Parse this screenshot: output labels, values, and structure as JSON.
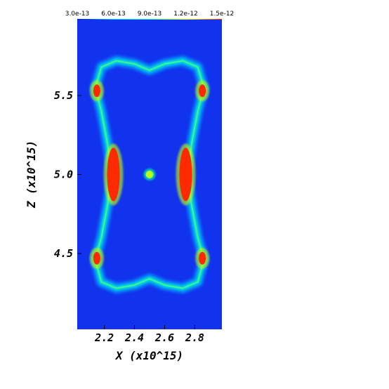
{
  "chart_data": {
    "type": "heatmap",
    "title": "",
    "xlabel": "X (x10^15)",
    "ylabel": "Z (x10^15)",
    "xlim": [
      2.02,
      2.98
    ],
    "ylim": [
      4.02,
      5.98
    ],
    "x_ticks": [
      {
        "value": 2.2,
        "label": "2.2"
      },
      {
        "value": 2.4,
        "label": "2.4"
      },
      {
        "value": 2.6,
        "label": "2.6"
      },
      {
        "value": 2.8,
        "label": "2.8"
      }
    ],
    "y_ticks": [
      {
        "value": 4.5,
        "label": "4.5"
      },
      {
        "value": 5.0,
        "label": "5.0"
      },
      {
        "value": 5.5,
        "label": "5.5"
      }
    ],
    "colorbar": {
      "range": [
        3e-13,
        1.5e-12
      ],
      "ticks": [
        {
          "value": 3e-13,
          "label": "3.0e-13"
        },
        {
          "value": 6e-13,
          "label": "6.0e-13"
        },
        {
          "value": 9e-13,
          "label": "9.0e-13"
        },
        {
          "value": 1.2e-12,
          "label": "1.2e-12"
        },
        {
          "value": 1.5e-12,
          "label": "1.5e-12"
        }
      ],
      "colors": [
        "#0000ff",
        "#00d0ff",
        "#00ffa0",
        "#c8ff00",
        "#ff2a00"
      ]
    },
    "background_color": "#1133ee",
    "field_description_points": {
      "central_blob": {
        "x": 2.5,
        "z": 5.0,
        "radius": 0.025,
        "value": 9e-13
      },
      "shell_outline": [
        {
          "x": 2.28,
          "z": 5.72
        },
        {
          "x": 2.4,
          "z": 5.7
        },
        {
          "x": 2.5,
          "z": 5.66
        },
        {
          "x": 2.6,
          "z": 5.7
        },
        {
          "x": 2.72,
          "z": 5.72
        },
        {
          "x": 2.82,
          "z": 5.68
        },
        {
          "x": 2.86,
          "z": 5.55
        },
        {
          "x": 2.82,
          "z": 5.4
        },
        {
          "x": 2.78,
          "z": 5.2
        },
        {
          "x": 2.75,
          "z": 5.0
        },
        {
          "x": 2.78,
          "z": 4.8
        },
        {
          "x": 2.82,
          "z": 4.6
        },
        {
          "x": 2.86,
          "z": 4.46
        },
        {
          "x": 2.82,
          "z": 4.32
        },
        {
          "x": 2.72,
          "z": 4.28
        },
        {
          "x": 2.6,
          "z": 4.3
        },
        {
          "x": 2.5,
          "z": 4.34
        },
        {
          "x": 2.4,
          "z": 4.3
        },
        {
          "x": 2.28,
          "z": 4.28
        },
        {
          "x": 2.18,
          "z": 4.32
        },
        {
          "x": 2.14,
          "z": 4.46
        },
        {
          "x": 2.18,
          "z": 4.6
        },
        {
          "x": 2.22,
          "z": 4.8
        },
        {
          "x": 2.25,
          "z": 5.0
        },
        {
          "x": 2.22,
          "z": 5.2
        },
        {
          "x": 2.18,
          "z": 5.4
        },
        {
          "x": 2.14,
          "z": 5.55
        },
        {
          "x": 2.18,
          "z": 5.68
        }
      ],
      "hot_spots": [
        {
          "x": 2.26,
          "z": 5.0,
          "value": 1.5e-12
        },
        {
          "x": 2.74,
          "z": 5.0,
          "value": 1.5e-12
        },
        {
          "x": 2.15,
          "z": 5.53,
          "value": 1.5e-12
        },
        {
          "x": 2.85,
          "z": 5.53,
          "value": 1.5e-12
        },
        {
          "x": 2.15,
          "z": 4.47,
          "value": 1.5e-12
        },
        {
          "x": 2.85,
          "z": 4.47,
          "value": 1.5e-12
        }
      ]
    }
  }
}
